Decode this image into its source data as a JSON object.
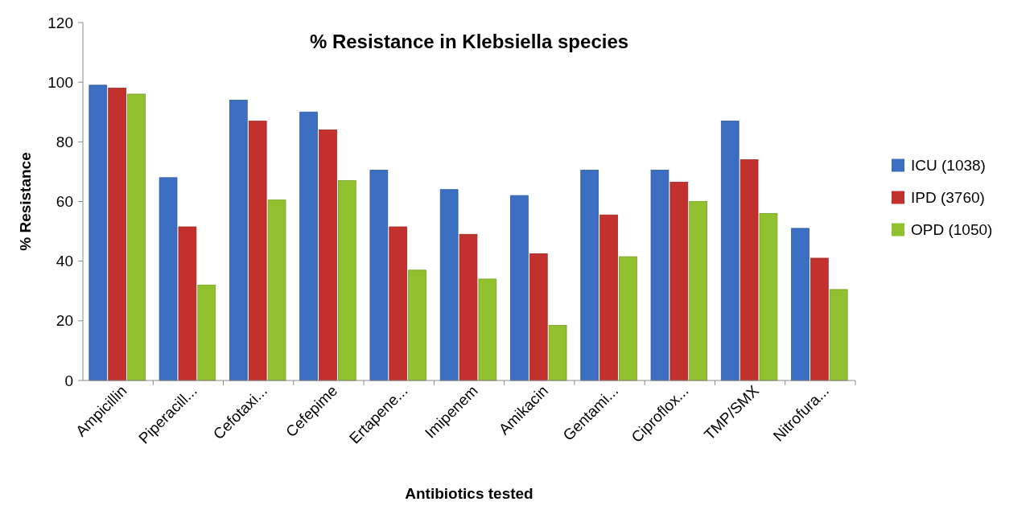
{
  "chart_data": {
    "type": "bar",
    "title": "% Resistance in Klebsiella species",
    "xlabel": "Antibiotics tested",
    "ylabel": "% Resistance",
    "categories": [
      "Ampicillin",
      "Piperacill...",
      "Cefotaxi...",
      "Cefepime",
      "Ertapene...",
      "Imipenem",
      "Amikacin",
      "Gentami...",
      "Ciproflox...",
      "TMP/SMX",
      "Nitrofura..."
    ],
    "series": [
      {
        "name": "ICU (1038)",
        "color": "#3c6fc2",
        "values": [
          99,
          68,
          94,
          90,
          70.5,
          64,
          62,
          70.5,
          70.5,
          87,
          51
        ]
      },
      {
        "name": "IPD (3760)",
        "color": "#c3312e",
        "values": [
          98,
          51.5,
          87,
          84,
          51.5,
          49,
          42.5,
          55.5,
          66.5,
          74,
          41
        ]
      },
      {
        "name": "OPD (1050)",
        "color": "#92c130",
        "values": [
          96,
          32,
          60.5,
          67,
          37,
          34,
          18.5,
          41.5,
          60,
          56,
          30.5
        ]
      }
    ],
    "ylim": [
      0,
      120
    ],
    "yticks": [
      0,
      20,
      40,
      60,
      80,
      100,
      120
    ],
    "grid": false,
    "legend": "right"
  }
}
